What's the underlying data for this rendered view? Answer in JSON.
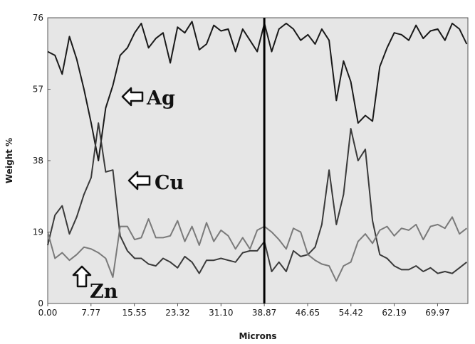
{
  "chart_data": {
    "type": "line",
    "xlabel": "Microns",
    "ylabel": "Weight %",
    "xlim": [
      0,
      75.41
    ],
    "ylim": [
      0,
      76
    ],
    "x_ticks": [
      "0.00",
      "7.77",
      "15.55",
      "23.32",
      "31.10",
      "38.87",
      "46.65",
      "54.42",
      "62.19",
      "69.97"
    ],
    "x_tick_values": [
      0.0,
      7.77,
      15.55,
      23.32,
      31.1,
      38.87,
      46.65,
      54.42,
      62.19,
      69.97
    ],
    "y_ticks": [
      "0",
      "19",
      "38",
      "57",
      "76"
    ],
    "y_tick_values": [
      0,
      19,
      38,
      57,
      76
    ],
    "grid": false,
    "background": "#e6e6e6",
    "marker_line_x": 38.87,
    "x": [
      0.0,
      1.3,
      2.6,
      3.9,
      5.2,
      6.5,
      7.8,
      9.1,
      10.4,
      11.7,
      13.0,
      14.3,
      15.6,
      16.8,
      18.1,
      19.4,
      20.7,
      22.0,
      23.3,
      24.6,
      25.9,
      27.2,
      28.5,
      29.8,
      31.1,
      32.4,
      33.7,
      35.0,
      36.3,
      37.6,
      38.9,
      40.2,
      41.5,
      42.8,
      44.1,
      45.4,
      46.7,
      48.0,
      49.2,
      50.5,
      51.8,
      53.1,
      54.4,
      55.7,
      57.0,
      58.3,
      59.6,
      60.9,
      62.2,
      63.5,
      64.8,
      66.1,
      67.4,
      68.7,
      70.0,
      71.3,
      72.6,
      73.9,
      75.2
    ],
    "series": [
      {
        "name": "Ag",
        "color": "#1a1a1a",
        "values": [
          67.0,
          66.0,
          61.0,
          71.0,
          65.0,
          57.0,
          48.0,
          38.0,
          52.0,
          58.0,
          66.0,
          68.0,
          72.0,
          74.5,
          68.0,
          70.5,
          72.0,
          64.0,
          73.5,
          72.0,
          75.0,
          67.5,
          69.0,
          74.0,
          72.5,
          73.0,
          67.0,
          73.0,
          70.0,
          67.0,
          74.5,
          67.0,
          73.0,
          74.5,
          73.0,
          70.0,
          71.5,
          69.0,
          73.0,
          70.0,
          54.0,
          64.5,
          59.0,
          48.0,
          50.0,
          48.5,
          63.0,
          68.0,
          72.0,
          71.5,
          70.0,
          74.0,
          70.5,
          72.5,
          73.0,
          70.0,
          74.5,
          73.0,
          69.0
        ]
      },
      {
        "name": "Cu",
        "color": "#3a3a3a",
        "values": [
          15.5,
          23.5,
          26.0,
          18.5,
          23.0,
          29.0,
          33.5,
          48.0,
          35.0,
          35.5,
          18.0,
          14.0,
          12.0,
          12.0,
          10.5,
          10.0,
          12.0,
          11.0,
          9.5,
          12.5,
          11.0,
          8.0,
          11.5,
          11.5,
          12.0,
          11.5,
          11.0,
          13.5,
          14.0,
          14.0,
          16.5,
          8.5,
          11.0,
          8.5,
          14.0,
          12.5,
          13.0,
          15.0,
          21.0,
          35.5,
          21.0,
          29.0,
          46.5,
          38.0,
          41.0,
          22.0,
          13.0,
          12.0,
          10.0,
          9.0,
          9.0,
          10.0,
          8.5,
          9.5,
          8.0,
          8.5,
          8.0,
          9.5,
          11.0
        ]
      },
      {
        "name": "Zn",
        "color": "#7a7a7a",
        "values": [
          19.0,
          12.0,
          13.5,
          11.5,
          13.0,
          15.0,
          14.5,
          13.5,
          12.0,
          7.0,
          20.5,
          20.5,
          17.0,
          17.5,
          22.5,
          17.5,
          17.5,
          18.0,
          22.0,
          16.5,
          20.5,
          15.5,
          21.5,
          16.5,
          19.5,
          18.0,
          14.5,
          17.5,
          14.5,
          19.5,
          20.5,
          19.0,
          17.0,
          14.5,
          20.0,
          19.0,
          13.0,
          11.5,
          10.5,
          10.0,
          6.0,
          10.0,
          11.0,
          16.5,
          18.5,
          16.0,
          19.5,
          20.5,
          18.0,
          20.0,
          19.5,
          21.0,
          17.0,
          20.5,
          21.0,
          20.0,
          23.0,
          18.5,
          20.0
        ]
      }
    ],
    "annotations": [
      {
        "label": "Ag",
        "arrow": "left"
      },
      {
        "label": "Cu",
        "arrow": "left"
      },
      {
        "label": "Zn",
        "arrow": "up"
      }
    ]
  }
}
